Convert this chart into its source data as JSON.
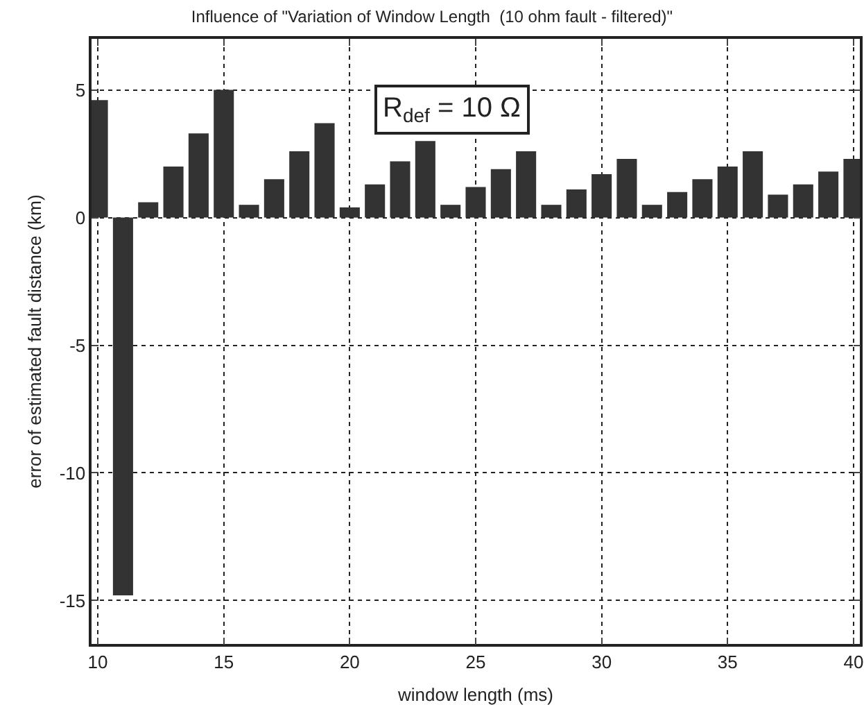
{
  "chart_data": {
    "type": "bar",
    "title": "Influence of \"Variation of Window Length  (10 ohm fault - filtered)\"",
    "xlabel": "window length (ms)",
    "ylabel": "error of estimated fault distance (km)",
    "x": [
      10,
      11,
      12,
      13,
      14,
      15,
      16,
      17,
      18,
      19,
      20,
      21,
      22,
      23,
      24,
      25,
      26,
      27,
      28,
      29,
      30,
      31,
      32,
      33,
      34,
      35,
      36,
      37,
      38,
      39,
      40
    ],
    "values": [
      4.6,
      -14.8,
      0.6,
      2.0,
      3.3,
      5.0,
      0.5,
      1.5,
      2.6,
      3.7,
      0.4,
      1.3,
      2.2,
      3.0,
      0.5,
      1.2,
      1.9,
      2.6,
      0.5,
      1.1,
      1.7,
      2.3,
      0.5,
      1.0,
      1.5,
      2.0,
      2.6,
      0.9,
      1.3,
      1.8,
      2.3
    ],
    "color": "#333333",
    "xlim": [
      9.75,
      40.25
    ],
    "xticks": [
      10,
      15,
      20,
      25,
      30,
      35,
      40
    ],
    "ylim": [
      -16.7,
      7
    ],
    "yticks": [
      -15,
      -10,
      -5,
      0,
      5
    ],
    "grid": true,
    "legend": false,
    "annotations": [
      "R$_{def}$ = 10 Ω"
    ]
  }
}
